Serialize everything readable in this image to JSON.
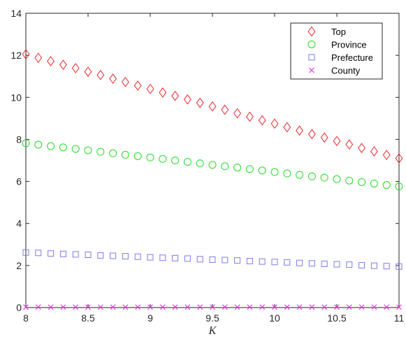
{
  "chart_data": {
    "type": "scatter",
    "title": "",
    "xlabel": "K",
    "ylabel": "",
    "xlim": [
      8,
      11
    ],
    "ylim": [
      0,
      14
    ],
    "xticks": [
      8,
      8.5,
      9,
      9.5,
      10,
      10.5,
      11
    ],
    "xtick_labels": [
      "8",
      "8.5",
      "9",
      "9.5",
      "10",
      "10.5",
      "11"
    ],
    "yticks": [
      0,
      2,
      4,
      6,
      8,
      10,
      12,
      14
    ],
    "ytick_labels": [
      "0",
      "2",
      "4",
      "6",
      "8",
      "10",
      "12",
      "14"
    ],
    "grid": false,
    "legend_position": "top-right",
    "x": [
      8.0,
      8.1,
      8.2,
      8.3,
      8.4,
      8.5,
      8.6,
      8.7,
      8.8,
      8.9,
      9.0,
      9.1,
      9.2,
      9.3,
      9.4,
      9.5,
      9.6,
      9.7,
      9.8,
      9.9,
      10.0,
      10.1,
      10.2,
      10.3,
      10.4,
      10.5,
      10.6,
      10.7,
      10.8,
      10.9,
      11.0
    ],
    "series": [
      {
        "name": "Top",
        "marker": "diamond",
        "color": "#e8262b",
        "values": [
          12.05,
          11.88,
          11.72,
          11.55,
          11.39,
          11.22,
          11.06,
          10.89,
          10.73,
          10.56,
          10.4,
          10.23,
          10.07,
          9.9,
          9.74,
          9.57,
          9.41,
          9.24,
          9.08,
          8.91,
          8.75,
          8.58,
          8.42,
          8.25,
          8.09,
          7.92,
          7.76,
          7.59,
          7.43,
          7.26,
          7.1
        ]
      },
      {
        "name": "Province",
        "marker": "circle",
        "color": "#22dd22",
        "values": [
          7.82,
          7.75,
          7.68,
          7.62,
          7.55,
          7.48,
          7.41,
          7.34,
          7.27,
          7.2,
          7.14,
          7.07,
          7.0,
          6.93,
          6.86,
          6.79,
          6.72,
          6.66,
          6.59,
          6.52,
          6.45,
          6.38,
          6.31,
          6.24,
          6.18,
          6.11,
          6.04,
          5.97,
          5.9,
          5.83,
          5.76
        ]
      },
      {
        "name": "Prefecture",
        "marker": "square",
        "color": "#7b7bee",
        "values": [
          2.62,
          2.6,
          2.57,
          2.55,
          2.53,
          2.51,
          2.48,
          2.46,
          2.44,
          2.42,
          2.39,
          2.37,
          2.35,
          2.33,
          2.3,
          2.28,
          2.26,
          2.24,
          2.21,
          2.19,
          2.17,
          2.15,
          2.12,
          2.1,
          2.08,
          2.06,
          2.04,
          2.01,
          1.99,
          1.97,
          1.95
        ]
      },
      {
        "name": "County",
        "marker": "x",
        "color": "#dd22dd",
        "values": [
          0.02,
          0.02,
          0.02,
          0.02,
          0.02,
          0.02,
          0.02,
          0.02,
          0.02,
          0.02,
          0.02,
          0.02,
          0.02,
          0.02,
          0.02,
          0.02,
          0.02,
          0.02,
          0.02,
          0.02,
          0.02,
          0.02,
          0.02,
          0.02,
          0.02,
          0.02,
          0.02,
          0.02,
          0.02,
          0.02,
          0.02
        ]
      }
    ]
  }
}
